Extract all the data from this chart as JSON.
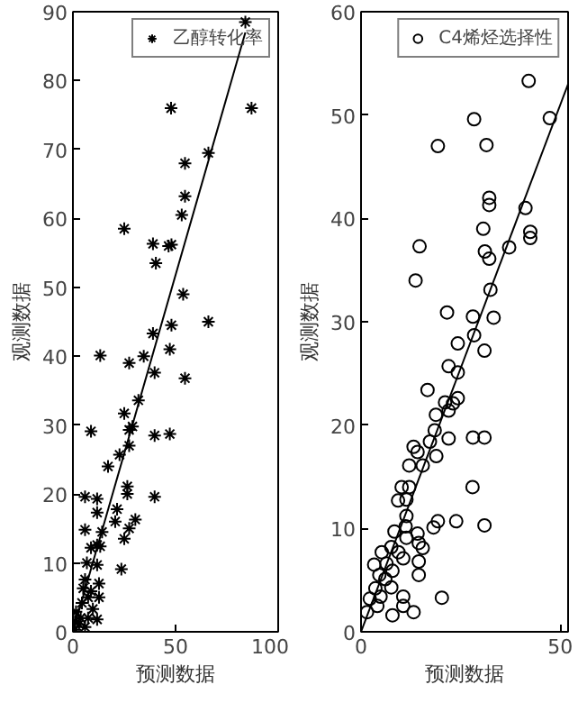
{
  "chart_data": [
    {
      "type": "scatter",
      "xlabel": "预测数据",
      "ylabel": "观测数据",
      "xlim": [
        0,
        100
      ],
      "ylim": [
        0,
        90
      ],
      "xticks": [
        0,
        50,
        100
      ],
      "yticks": [
        0,
        10,
        20,
        30,
        40,
        50,
        60,
        70,
        80,
        90
      ],
      "grid": false,
      "legend": "top right",
      "series": [
        {
          "name": "乙醇转化率",
          "color": "#000000",
          "marker": "cross",
          "x": [
            84,
            87,
            47.8,
            66,
            54.6,
            54.6,
            53,
            25,
            39,
            46.6,
            48,
            40.4,
            53.7,
            66,
            48,
            39,
            13.3,
            34.5,
            27.4,
            47.2,
            39.8,
            54.6,
            31.9,
            8.8,
            25,
            27.4,
            29,
            39.8,
            47.2,
            27.4,
            22.7,
            17.1,
            26.5,
            26.5,
            39.8,
            5.9,
            11.8,
            11.8,
            21.5,
            30.4,
            27.4,
            20.6,
            5.9,
            11.8,
            8.8,
            13.3,
            25,
            14.2,
            23.6,
            6.8,
            11.8,
            12.7,
            5.9,
            8.8,
            12.7,
            4.4,
            9.7,
            1.5,
            11.8,
            3,
            5.9,
            1,
            7.4,
            3.8,
            1,
            7.4,
            5
          ],
          "values": [
            88.5,
            76,
            76,
            69.5,
            68,
            63.2,
            60.5,
            58.5,
            56.3,
            56,
            56.2,
            53.5,
            49,
            45,
            44.5,
            43.3,
            40.1,
            40,
            39,
            41,
            37.6,
            36.8,
            33.6,
            29.1,
            31.7,
            29.3,
            29.8,
            28.5,
            28.7,
            27,
            25.7,
            24,
            21.1,
            20,
            19.6,
            19.6,
            19.3,
            17.3,
            17.8,
            16.3,
            15,
            16,
            14.8,
            12.6,
            12.2,
            12.4,
            13.5,
            14.5,
            9.1,
            10,
            9.7,
            7,
            7.6,
            5.9,
            5,
            4.2,
            3.3,
            2.9,
            1.8,
            1.1,
            0.7,
            0.3,
            2,
            2,
            1.5,
            5,
            6.3
          ]
        },
        {
          "type": "line",
          "color": "#000000",
          "marker": "none",
          "x": [
            0,
            84
          ],
          "values": [
            0,
            87
          ]
        }
      ]
    },
    {
      "type": "scatter",
      "xlabel": "预测数据",
      "ylabel": "观测数据",
      "xlim": [
        0,
        52
      ],
      "ylim": [
        0,
        60
      ],
      "xticks": [
        0,
        50
      ],
      "yticks": [
        0,
        10,
        20,
        30,
        40,
        50,
        60
      ],
      "grid": false,
      "legend": "top right",
      "series": [
        {
          "name": "C4烯烃选择性",
          "color": "#000000",
          "marker": "circle",
          "x": [
            42.1,
            47.4,
            28.4,
            19.3,
            31.5,
            32.2,
            32.2,
            41.3,
            42.5,
            42.5,
            30.7,
            14.7,
            37.2,
            31.1,
            32.2,
            13.7,
            32.5,
            21.6,
            28.1,
            33.3,
            28.4,
            24.3,
            31,
            22,
            24.3,
            16.7,
            24.3,
            21.1,
            23.1,
            22,
            18.8,
            18.5,
            22,
            28.1,
            31,
            17.3,
            13.2,
            14.2,
            18.9,
            15.5,
            12.1,
            10.2,
            12.1,
            11.4,
            28,
            9.3,
            11.4,
            11.2,
            23.9,
            31,
            19.3,
            18.2,
            8.4,
            14.2,
            11.4,
            14.5,
            7.6,
            15.5,
            5.2,
            9.4,
            10.6,
            14.5,
            6.4,
            3.3,
            7.9,
            14.5,
            4.6,
            6.1,
            3.6,
            7.6,
            2.2,
            4.9,
            20.3,
            10.6,
            1.5,
            7.9,
            13.2,
            10.6,
            4.1
          ],
          "values": [
            53.3,
            49.7,
            49.6,
            47,
            47.1,
            42,
            41.3,
            41,
            38.7,
            38.1,
            39,
            37.3,
            37.2,
            36.8,
            36.1,
            34,
            33.1,
            30.9,
            30.5,
            30.4,
            28.7,
            27.9,
            27.2,
            25.7,
            25.1,
            23.4,
            22.6,
            22.2,
            22.1,
            21.4,
            21,
            19.5,
            18.7,
            18.8,
            18.8,
            18.4,
            17.9,
            17.4,
            17,
            16.1,
            16.1,
            14,
            14,
            12.8,
            14,
            12.7,
            11.2,
            10.2,
            10.7,
            10.3,
            10.7,
            10.1,
            9.7,
            9.5,
            9.1,
            8.6,
            8.2,
            8.1,
            7.7,
            7.7,
            7.1,
            6.8,
            6.6,
            6.5,
            5.9,
            5.5,
            5.5,
            5.1,
            4.2,
            4.3,
            3.2,
            3.4,
            3.3,
            3.4,
            1.9,
            1.6,
            1.9,
            2.5,
            2.5
          ]
        },
        {
          "type": "line",
          "color": "#000000",
          "marker": "none",
          "x": [
            0,
            52
          ],
          "values": [
            0,
            53
          ]
        }
      ]
    }
  ]
}
